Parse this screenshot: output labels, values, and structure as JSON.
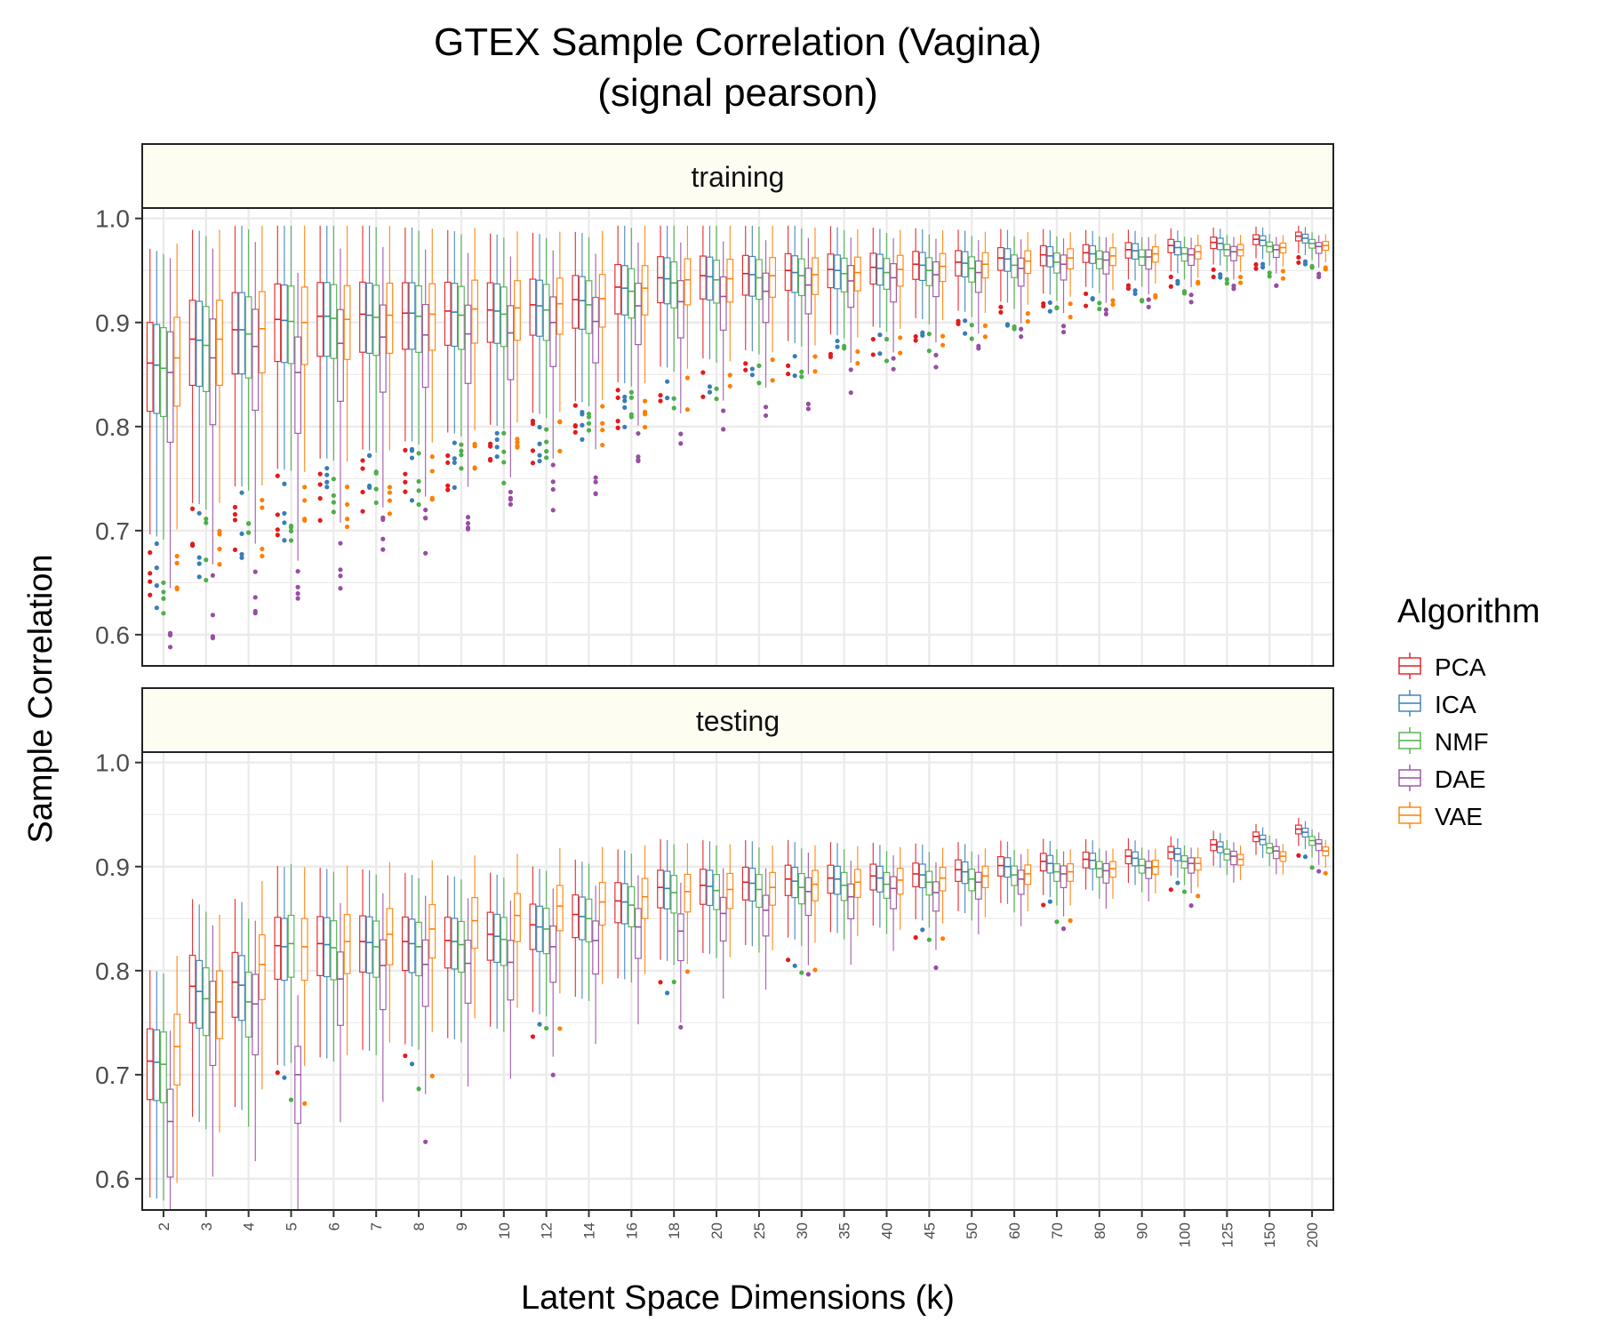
{
  "chart_data": {
    "type": "boxplot",
    "title": "GTEX Sample Correlation (Vagina)",
    "subtitle": "(signal pearson)",
    "xlabel": "Latent Space Dimensions (k)",
    "ylabel": "Sample Correlation",
    "ylim": [
      0.57,
      1.01
    ],
    "yticks": [
      "0.6",
      "0.7",
      "0.8",
      "0.9",
      "1.0"
    ],
    "grid": true,
    "legend_position": "right",
    "legend_title": "Algorithm",
    "categories": [
      "2",
      "3",
      "4",
      "5",
      "6",
      "7",
      "8",
      "9",
      "10",
      "12",
      "14",
      "16",
      "18",
      "20",
      "25",
      "30",
      "35",
      "40",
      "45",
      "50",
      "60",
      "70",
      "80",
      "90",
      "100",
      "125",
      "150",
      "200"
    ],
    "series": [
      {
        "name": "PCA",
        "color": "#e41a1c"
      },
      {
        "name": "ICA",
        "color": "#377eb8"
      },
      {
        "name": "NMF",
        "color": "#4daf4a"
      },
      {
        "name": "DAE",
        "color": "#984ea3"
      },
      {
        "name": "VAE",
        "color": "#ff7f00"
      }
    ],
    "panels": [
      {
        "label": "training",
        "medians": {
          "PCA": [
            0.861,
            0.884,
            0.893,
            0.903,
            0.906,
            0.908,
            0.909,
            0.911,
            0.912,
            0.917,
            0.922,
            0.934,
            0.943,
            0.945,
            0.947,
            0.95,
            0.951,
            0.953,
            0.956,
            0.958,
            0.962,
            0.965,
            0.967,
            0.97,
            0.974,
            0.977,
            0.98,
            0.983
          ],
          "ICA": [
            0.859,
            0.883,
            0.893,
            0.902,
            0.906,
            0.907,
            0.909,
            0.91,
            0.911,
            0.916,
            0.921,
            0.933,
            0.942,
            0.944,
            0.946,
            0.948,
            0.95,
            0.952,
            0.955,
            0.957,
            0.961,
            0.964,
            0.966,
            0.969,
            0.972,
            0.976,
            0.979,
            0.981
          ],
          "NMF": [
            0.856,
            0.878,
            0.889,
            0.901,
            0.904,
            0.905,
            0.906,
            0.907,
            0.908,
            0.912,
            0.917,
            0.93,
            0.938,
            0.941,
            0.943,
            0.945,
            0.947,
            0.948,
            0.95,
            0.952,
            0.955,
            0.958,
            0.961,
            0.963,
            0.966,
            0.97,
            0.973,
            0.976
          ],
          "DAE": [
            0.852,
            0.866,
            0.877,
            0.852,
            0.88,
            0.886,
            0.888,
            0.889,
            0.89,
            0.9,
            0.901,
            0.916,
            0.92,
            0.925,
            0.93,
            0.936,
            0.94,
            0.943,
            0.946,
            0.948,
            0.952,
            0.956,
            0.96,
            0.963,
            0.965,
            0.968,
            0.97,
            0.973
          ],
          "VAE": [
            0.866,
            0.884,
            0.894,
            0.9,
            0.903,
            0.907,
            0.908,
            0.913,
            0.914,
            0.918,
            0.923,
            0.933,
            0.941,
            0.942,
            0.945,
            0.946,
            0.948,
            0.951,
            0.954,
            0.956,
            0.959,
            0.962,
            0.964,
            0.966,
            0.968,
            0.97,
            0.972,
            0.974
          ]
        }
      },
      {
        "label": "testing",
        "medians": {
          "PCA": [
            0.713,
            0.785,
            0.789,
            0.824,
            0.826,
            0.828,
            0.828,
            0.829,
            0.835,
            0.844,
            0.854,
            0.867,
            0.88,
            0.882,
            0.885,
            0.888,
            0.889,
            0.891,
            0.893,
            0.897,
            0.901,
            0.905,
            0.907,
            0.91,
            0.914,
            0.921,
            0.929,
            0.936
          ],
          "ICA": [
            0.712,
            0.78,
            0.786,
            0.823,
            0.825,
            0.827,
            0.826,
            0.828,
            0.833,
            0.842,
            0.852,
            0.866,
            0.879,
            0.881,
            0.884,
            0.886,
            0.888,
            0.889,
            0.892,
            0.895,
            0.9,
            0.903,
            0.906,
            0.908,
            0.912,
            0.919,
            0.926,
            0.933
          ],
          "NMF": [
            0.71,
            0.773,
            0.77,
            0.826,
            0.822,
            0.823,
            0.823,
            0.825,
            0.83,
            0.84,
            0.85,
            0.863,
            0.875,
            0.877,
            0.878,
            0.88,
            0.882,
            0.883,
            0.885,
            0.888,
            0.892,
            0.895,
            0.898,
            0.901,
            0.905,
            0.912,
            0.918,
            0.925
          ],
          "DAE": [
            0.655,
            0.76,
            0.768,
            0.7,
            0.792,
            0.805,
            0.806,
            0.807,
            0.808,
            0.823,
            0.829,
            0.842,
            0.838,
            0.855,
            0.858,
            0.876,
            0.871,
            0.879,
            0.875,
            0.885,
            0.888,
            0.893,
            0.896,
            0.899,
            0.903,
            0.91,
            0.915,
            0.922
          ],
          "VAE": [
            0.727,
            0.77,
            0.806,
            0.823,
            0.828,
            0.835,
            0.84,
            0.848,
            0.853,
            0.862,
            0.866,
            0.871,
            0.876,
            0.878,
            0.88,
            0.883,
            0.885,
            0.887,
            0.889,
            0.891,
            0.893,
            0.895,
            0.898,
            0.9,
            0.903,
            0.907,
            0.91,
            0.915
          ]
        }
      }
    ]
  }
}
